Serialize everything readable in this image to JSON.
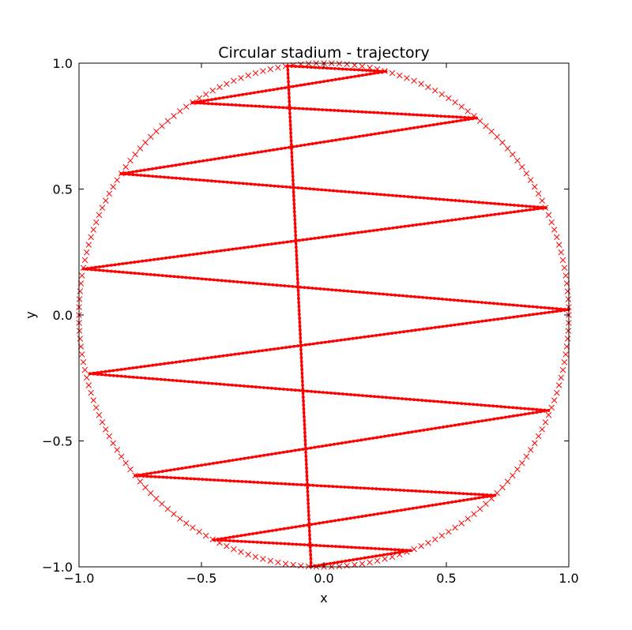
{
  "chart_data": {
    "type": "line",
    "title": "Circular stadium - trajectory",
    "xlabel": "x",
    "ylabel": "y",
    "xlim": [
      -1.0,
      1.0
    ],
    "ylim": [
      -1.0,
      1.0
    ],
    "xticks": [
      -1.0,
      -0.5,
      0.0,
      0.5,
      1.0
    ],
    "yticks": [
      -1.0,
      -0.5,
      0.0,
      0.5,
      1.0
    ],
    "xtick_labels": [
      "−1.0",
      "−0.5",
      "0.0",
      "0.5",
      "1.0"
    ],
    "ytick_labels": [
      "−1.0",
      "−0.5",
      "0.0",
      "0.5",
      "1.0"
    ],
    "grid": false,
    "legend": "none",
    "colors": {
      "series": "#ff0000",
      "axes": "#000000"
    },
    "series": [
      {
        "role": "boundary",
        "marker": "x",
        "shape": "unit circle",
        "radius": 1.0,
        "num_markers": 200
      },
      {
        "role": "trajectory",
        "marker": "dot",
        "points": [
          [
            0.999,
            0.021
          ],
          [
            -0.981,
            0.183
          ],
          [
            0.906,
            0.426
          ],
          [
            -0.828,
            0.561
          ],
          [
            0.623,
            0.782
          ],
          [
            -0.537,
            0.843
          ],
          [
            0.253,
            0.967
          ],
          [
            -0.148,
            0.989
          ],
          [
            -0.052,
            -0.999
          ],
          [
            0.354,
            -0.935
          ],
          [
            -0.449,
            -0.893
          ],
          [
            0.698,
            -0.716
          ],
          [
            -0.77,
            -0.638
          ],
          [
            0.917,
            -0.379
          ],
          [
            -0.956,
            -0.233
          ],
          [
            0.999,
            0.021
          ]
        ]
      }
    ]
  }
}
